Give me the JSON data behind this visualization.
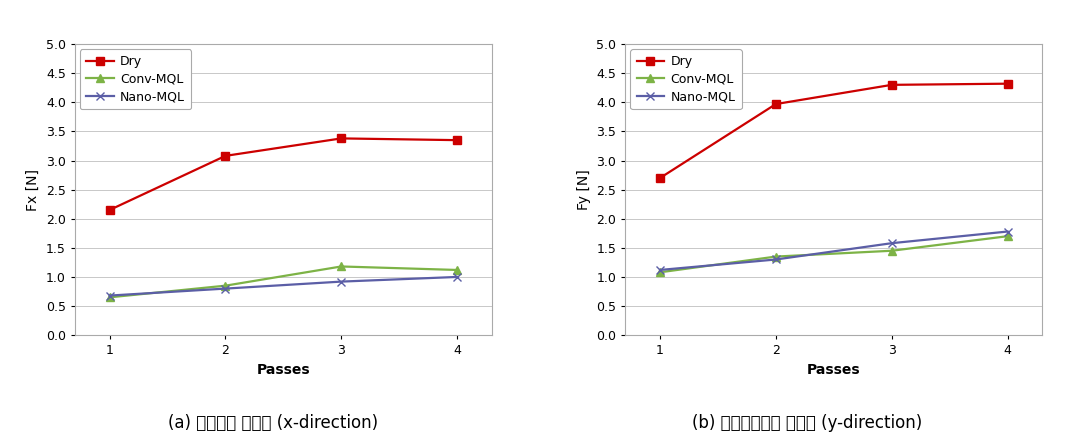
{
  "passes": [
    1,
    2,
    3,
    4
  ],
  "chart_a": {
    "title": "(a) 이송방향 가공력 (x-direction)",
    "ylabel": "Fx [N]",
    "xlabel": "Passes",
    "ylim": [
      0,
      5
    ],
    "yticks": [
      0,
      0.5,
      1.0,
      1.5,
      2.0,
      2.5,
      3.0,
      3.5,
      4.0,
      4.5,
      5.0
    ],
    "series": {
      "Dry": {
        "values": [
          2.15,
          3.08,
          3.38,
          3.35
        ],
        "color": "#CC0000",
        "marker": "s"
      },
      "Conv-MQL": {
        "values": [
          0.65,
          0.85,
          1.18,
          1.12
        ],
        "color": "#7DB346",
        "marker": "^"
      },
      "Nano-MQL": {
        "values": [
          0.68,
          0.8,
          0.92,
          1.0
        ],
        "color": "#5B5EA6",
        "marker": "x"
      }
    }
  },
  "chart_b": {
    "title": "(b) 이송수직방향 가공력 (y-direction)",
    "ylabel": "Fy [N]",
    "xlabel": "Passes",
    "ylim": [
      0,
      5
    ],
    "yticks": [
      0,
      0.5,
      1.0,
      1.5,
      2.0,
      2.5,
      3.0,
      3.5,
      4.0,
      4.5,
      5.0
    ],
    "series": {
      "Dry": {
        "values": [
          2.7,
          3.97,
          4.3,
          4.32
        ],
        "color": "#CC0000",
        "marker": "s"
      },
      "Conv-MQL": {
        "values": [
          1.08,
          1.35,
          1.45,
          1.7
        ],
        "color": "#7DB346",
        "marker": "^"
      },
      "Nano-MQL": {
        "values": [
          1.12,
          1.3,
          1.58,
          1.78
        ],
        "color": "#5B5EA6",
        "marker": "x"
      }
    }
  },
  "background_color": "#FFFFFF",
  "grid_color": "#C8C8C8",
  "title_fontsize": 12,
  "label_fontsize": 10,
  "tick_fontsize": 9,
  "legend_fontsize": 9,
  "line_width": 1.6,
  "marker_size": 6
}
